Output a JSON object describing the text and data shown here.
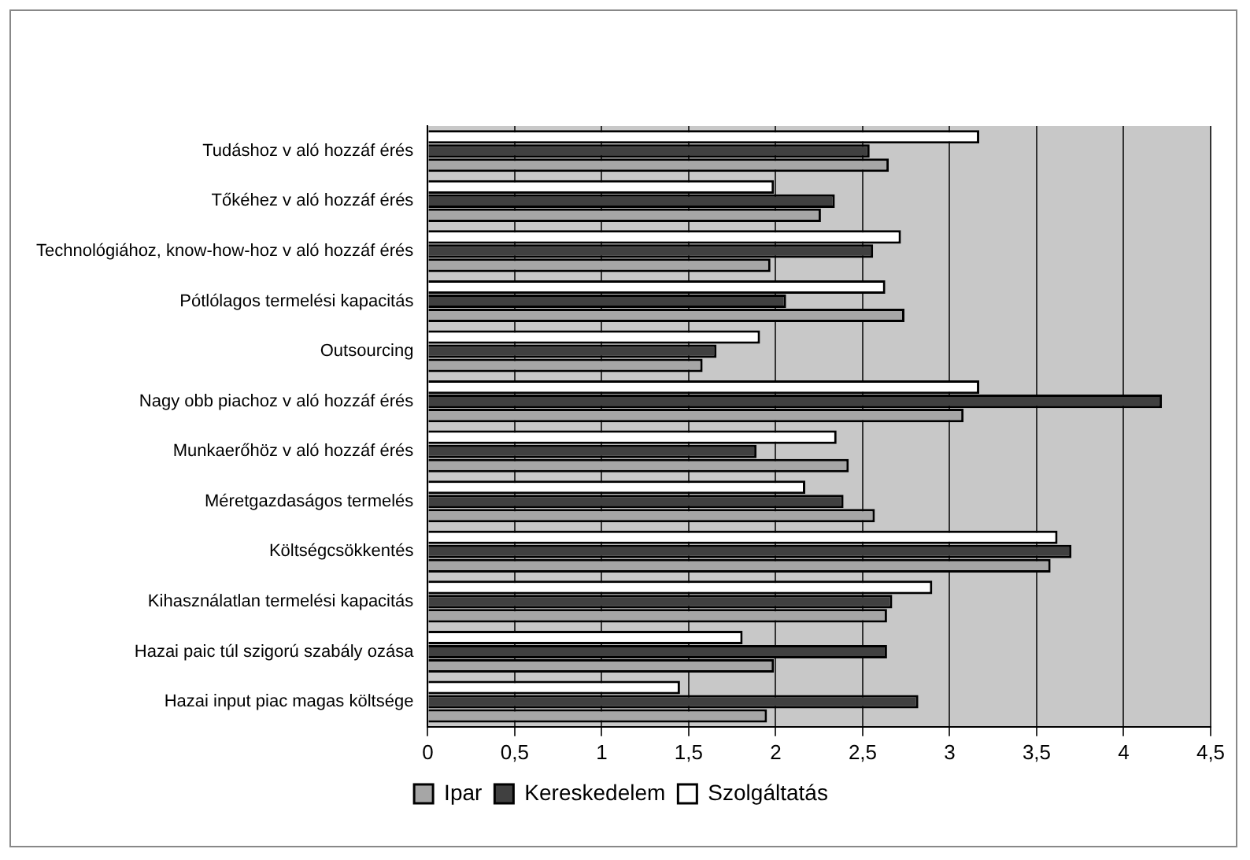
{
  "chart_data": {
    "type": "bar",
    "orientation": "horizontal",
    "categories": [
      "Tudáshoz v aló hozzáf érés",
      "Tőkéhez v aló hozzáf érés",
      "Technológiához, know-how-hoz v aló hozzáf érés",
      "Pótlólagos termelési kapacitás",
      "Outsourcing",
      "Nagy obb piachoz v aló hozzáf érés",
      "Munkaerőhöz v aló hozzáf érés",
      "Méretgazdaságos termelés",
      "Költségcsökkentés",
      "Kihasználatlan termelési kapacitás",
      "Hazai paic túl szigorú szabály ozása",
      "Hazai input piac magas költsége"
    ],
    "series": [
      {
        "name": "Ipar",
        "color": "#a6a6a6",
        "values": [
          2.65,
          2.26,
          1.97,
          2.74,
          1.58,
          3.08,
          2.42,
          2.57,
          3.58,
          2.64,
          1.99,
          1.95
        ]
      },
      {
        "name": "Kereskedelem",
        "color": "#404040",
        "values": [
          2.54,
          2.34,
          2.56,
          2.06,
          1.66,
          4.22,
          1.89,
          2.39,
          3.7,
          2.67,
          2.64,
          2.82
        ]
      },
      {
        "name": "Szolgáltatás",
        "color": "#ffffff",
        "values": [
          3.17,
          1.99,
          2.72,
          2.63,
          1.91,
          3.17,
          2.35,
          2.17,
          3.62,
          2.9,
          1.81,
          1.45
        ]
      }
    ],
    "xlim": [
      0,
      4.5
    ],
    "xticks": [
      0,
      {
        "value": 0.5,
        "label": "0,5"
      },
      1,
      {
        "value": 1.5,
        "label": "1,5"
      },
      2,
      {
        "value": 2.5,
        "label": "2,5"
      },
      3,
      {
        "value": 3.5,
        "label": "3,5"
      },
      4,
      {
        "value": 4.5,
        "label": "4,5"
      }
    ],
    "grid": "x",
    "legend": "bottom"
  }
}
